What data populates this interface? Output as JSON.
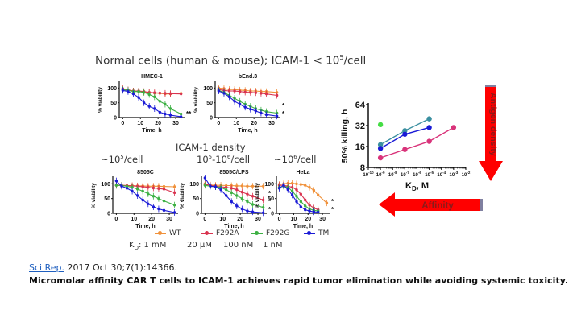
{
  "slide": {
    "heading": "Normal cells (human & mouse); ICAM-1 < 10",
    "heading_sup": "5",
    "heading_tail": "/cell",
    "density_label": "ICAM-1 density",
    "density_low": {
      "pre": "~10",
      "sup": "5",
      "post": "/cell"
    },
    "density_mid": {
      "pre": "10",
      "sup1": "5",
      "mid": "-10",
      "sup2": "6",
      "post": "/cell"
    },
    "density_high": {
      "pre": "~10",
      "sup": "6",
      "post": "/cell"
    },
    "legend": [
      {
        "name": "WT",
        "color": "#f0913a",
        "kd": "1 mM"
      },
      {
        "name": "F292A",
        "color": "#d9334f",
        "kd": "20 µM"
      },
      {
        "name": "F292G",
        "color": "#3cb043",
        "kd": "100 nM"
      },
      {
        "name": "TM",
        "color": "#1a1ad6",
        "kd": "1 nM"
      }
    ],
    "kd_prefix": "K",
    "kd_sub": "D",
    "kd_colon": ": ",
    "reference": {
      "journal": "Sci Rep.",
      "citation": " 2017 Oct 30;7(1):14366."
    },
    "paper_title": "Micromolar affinity CAR T cells to ICAM-1 achieves rapid tumor elimination while avoiding systemic toxicity.",
    "arrow_vertical_label": "Antigen density",
    "arrow_horizontal_label": "Affinity",
    "arrow_color": "#ff0000"
  },
  "chart_data": [
    {
      "type": "line",
      "title": "HMEC-1",
      "xlabel": "Time, h",
      "ylabel": "% viability",
      "xticks": [
        "0",
        "10",
        "20",
        "30"
      ],
      "yticks": [
        "0",
        "50",
        "100"
      ],
      "xlim": [
        -2,
        35
      ],
      "ylim": [
        0,
        120
      ],
      "series": [
        {
          "name": "WT",
          "x": [
            0,
            3,
            6,
            9,
            12,
            15,
            18,
            21,
            24,
            27,
            33
          ],
          "y": [
            95,
            92,
            90,
            88,
            86,
            85,
            83,
            82,
            80,
            80,
            82
          ]
        },
        {
          "name": "F292A",
          "x": [
            0,
            3,
            6,
            9,
            12,
            15,
            18,
            21,
            24,
            27,
            33
          ],
          "y": [
            98,
            94,
            90,
            90,
            88,
            85,
            84,
            83,
            82,
            81,
            80
          ]
        },
        {
          "name": "F292G",
          "x": [
            0,
            3,
            6,
            9,
            12,
            15,
            18,
            21,
            24,
            27,
            33
          ],
          "y": [
            95,
            92,
            88,
            88,
            85,
            78,
            70,
            55,
            45,
            30,
            12
          ]
        },
        {
          "name": "TM",
          "x": [
            0,
            3,
            6,
            9,
            12,
            15,
            18,
            21,
            24,
            27,
            33
          ],
          "y": [
            92,
            88,
            80,
            68,
            50,
            38,
            30,
            18,
            12,
            8,
            3
          ]
        }
      ],
      "annotations": [
        "**"
      ]
    },
    {
      "type": "line",
      "title": "bEnd.3",
      "xlabel": "Time, h",
      "ylabel": "% viability",
      "xticks": [
        "0",
        "10",
        "20",
        "30"
      ],
      "yticks": [
        "0",
        "50",
        "100"
      ],
      "xlim": [
        -2,
        35
      ],
      "ylim": [
        0,
        120
      ],
      "series": [
        {
          "name": "WT",
          "x": [
            0,
            3,
            6,
            9,
            12,
            15,
            18,
            21,
            24,
            27,
            33
          ],
          "y": [
            100,
            98,
            95,
            95,
            93,
            92,
            90,
            90,
            88,
            88,
            85
          ]
        },
        {
          "name": "F292A",
          "x": [
            0,
            3,
            6,
            9,
            12,
            15,
            18,
            21,
            24,
            27,
            33
          ],
          "y": [
            95,
            92,
            90,
            90,
            88,
            86,
            85,
            84,
            82,
            80,
            75
          ]
        },
        {
          "name": "F292G",
          "x": [
            0,
            3,
            6,
            9,
            12,
            15,
            18,
            21,
            24,
            27,
            33
          ],
          "y": [
            92,
            85,
            75,
            65,
            55,
            45,
            38,
            30,
            25,
            20,
            15
          ]
        },
        {
          "name": "TM",
          "x": [
            0,
            3,
            6,
            9,
            12,
            15,
            18,
            21,
            24,
            27,
            33
          ],
          "y": [
            90,
            82,
            70,
            55,
            45,
            35,
            28,
            22,
            15,
            10,
            5
          ]
        }
      ],
      "annotations": [
        "*",
        "*"
      ]
    },
    {
      "type": "line",
      "title": "8505C",
      "xlabel": "Time, h",
      "ylabel": "% viability",
      "xticks": [
        "0",
        "10",
        "20",
        "30"
      ],
      "yticks": [
        "0",
        "50",
        "100"
      ],
      "xlim": [
        -2,
        35
      ],
      "ylim": [
        0,
        120
      ],
      "series": [
        {
          "name": "WT",
          "x": [
            0,
            3,
            6,
            9,
            12,
            15,
            18,
            21,
            24,
            27,
            33
          ],
          "y": [
            95,
            95,
            94,
            94,
            93,
            93,
            92,
            92,
            92,
            91,
            90
          ]
        },
        {
          "name": "F292A",
          "x": [
            0,
            3,
            6,
            9,
            12,
            15,
            18,
            21,
            24,
            27,
            33
          ],
          "y": [
            95,
            95,
            94,
            93,
            92,
            90,
            88,
            86,
            84,
            82,
            70
          ]
        },
        {
          "name": "F292G",
          "x": [
            0,
            3,
            6,
            9,
            12,
            15,
            18,
            21,
            24,
            27,
            33
          ],
          "y": [
            95,
            94,
            92,
            88,
            82,
            75,
            66,
            58,
            50,
            42,
            28
          ]
        },
        {
          "name": "TM",
          "x": [
            0,
            3,
            6,
            9,
            12,
            15,
            18,
            21,
            24,
            27,
            33
          ],
          "y": [
            110,
            92,
            85,
            75,
            60,
            45,
            32,
            22,
            15,
            10,
            3
          ]
        }
      ],
      "annotations": [
        "*",
        "*"
      ]
    },
    {
      "type": "line",
      "title": "8505C/LPS",
      "xlabel": "Time, h",
      "ylabel": "% viability",
      "xticks": [
        "0",
        "10",
        "20",
        "30"
      ],
      "yticks": [
        "0",
        "50",
        "100"
      ],
      "xlim": [
        -2,
        35
      ],
      "ylim": [
        0,
        120
      ],
      "series": [
        {
          "name": "WT",
          "x": [
            0,
            3,
            6,
            9,
            12,
            15,
            18,
            21,
            24,
            27,
            33
          ],
          "y": [
            100,
            96,
            95,
            95,
            94,
            94,
            93,
            93,
            92,
            92,
            92
          ]
        },
        {
          "name": "F292A",
          "x": [
            0,
            3,
            6,
            9,
            12,
            15,
            18,
            21,
            24,
            27,
            33
          ],
          "y": [
            98,
            95,
            92,
            90,
            88,
            85,
            80,
            72,
            65,
            58,
            45
          ]
        },
        {
          "name": "F292G",
          "x": [
            0,
            3,
            6,
            9,
            12,
            15,
            18,
            21,
            24,
            27,
            33
          ],
          "y": [
            95,
            92,
            90,
            88,
            80,
            70,
            60,
            50,
            40,
            30,
            20
          ]
        },
        {
          "name": "TM",
          "x": [
            0,
            3,
            6,
            9,
            12,
            15,
            18,
            21,
            24,
            27,
            33
          ],
          "y": [
            130,
            92,
            90,
            80,
            60,
            40,
            25,
            15,
            8,
            5,
            2
          ]
        }
      ],
      "annotations": [
        "*",
        "*",
        "*"
      ]
    },
    {
      "type": "line",
      "title": "HeLa",
      "xlabel": "Time, h",
      "ylabel": "% viability",
      "xticks": [
        "0",
        "10",
        "20",
        "30"
      ],
      "yticks": [
        "0",
        "50",
        "100"
      ],
      "xlim": [
        -2,
        35
      ],
      "ylim": [
        0,
        120
      ],
      "series": [
        {
          "name": "WT",
          "x": [
            0,
            3,
            6,
            9,
            12,
            15,
            18,
            21,
            24,
            27,
            33
          ],
          "y": [
            98,
            100,
            102,
            102,
            100,
            98,
            95,
            88,
            78,
            62,
            35
          ]
        },
        {
          "name": "F292A",
          "x": [
            0,
            3,
            6,
            9,
            12,
            15,
            18,
            21,
            24,
            27
          ],
          "y": [
            95,
            95,
            92,
            88,
            80,
            65,
            45,
            28,
            18,
            12
          ]
        },
        {
          "name": "F292G",
          "x": [
            0,
            3,
            6,
            9,
            12,
            15,
            18,
            21,
            24,
            27
          ],
          "y": [
            88,
            92,
            88,
            75,
            58,
            40,
            25,
            15,
            10,
            8
          ]
        },
        {
          "name": "TM",
          "x": [
            0,
            3,
            6,
            9,
            12,
            15,
            18,
            21,
            24,
            27
          ],
          "y": [
            85,
            95,
            80,
            62,
            40,
            22,
            12,
            8,
            5,
            4
          ]
        }
      ],
      "annotations": [
        "*",
        "*"
      ]
    },
    {
      "type": "line",
      "title": "",
      "xlabel": "KD, M",
      "ylabel": "50% killing, h",
      "xscale": "log10",
      "yscale": "log2",
      "xticks": [
        "10-10",
        "10-9",
        "10-8",
        "10-7",
        "10-6",
        "10-5",
        "10-4",
        "10-3",
        "10-2"
      ],
      "yticks": [
        "8",
        "16",
        "32",
        "64"
      ],
      "xlim": [
        1e-10,
        0.01
      ],
      "ylim": [
        8,
        64
      ],
      "series": [
        {
          "name": "teal",
          "color": "#3a8fa0",
          "x": [
            1e-09,
            1e-07,
            1e-05
          ],
          "y": [
            17,
            27,
            40
          ]
        },
        {
          "name": "blue",
          "color": "#1a1ad6",
          "x": [
            1e-09,
            1e-07,
            1e-05
          ],
          "y": [
            15,
            24,
            30
          ]
        },
        {
          "name": "pink",
          "color": "#d9337a",
          "x": [
            1e-09,
            1e-07,
            1e-05,
            0.001
          ],
          "y": [
            11,
            14.5,
            19,
            30
          ]
        },
        {
          "name": "green",
          "color": "#44dd44",
          "x": [
            1e-09
          ],
          "y": [
            33
          ]
        }
      ]
    }
  ]
}
